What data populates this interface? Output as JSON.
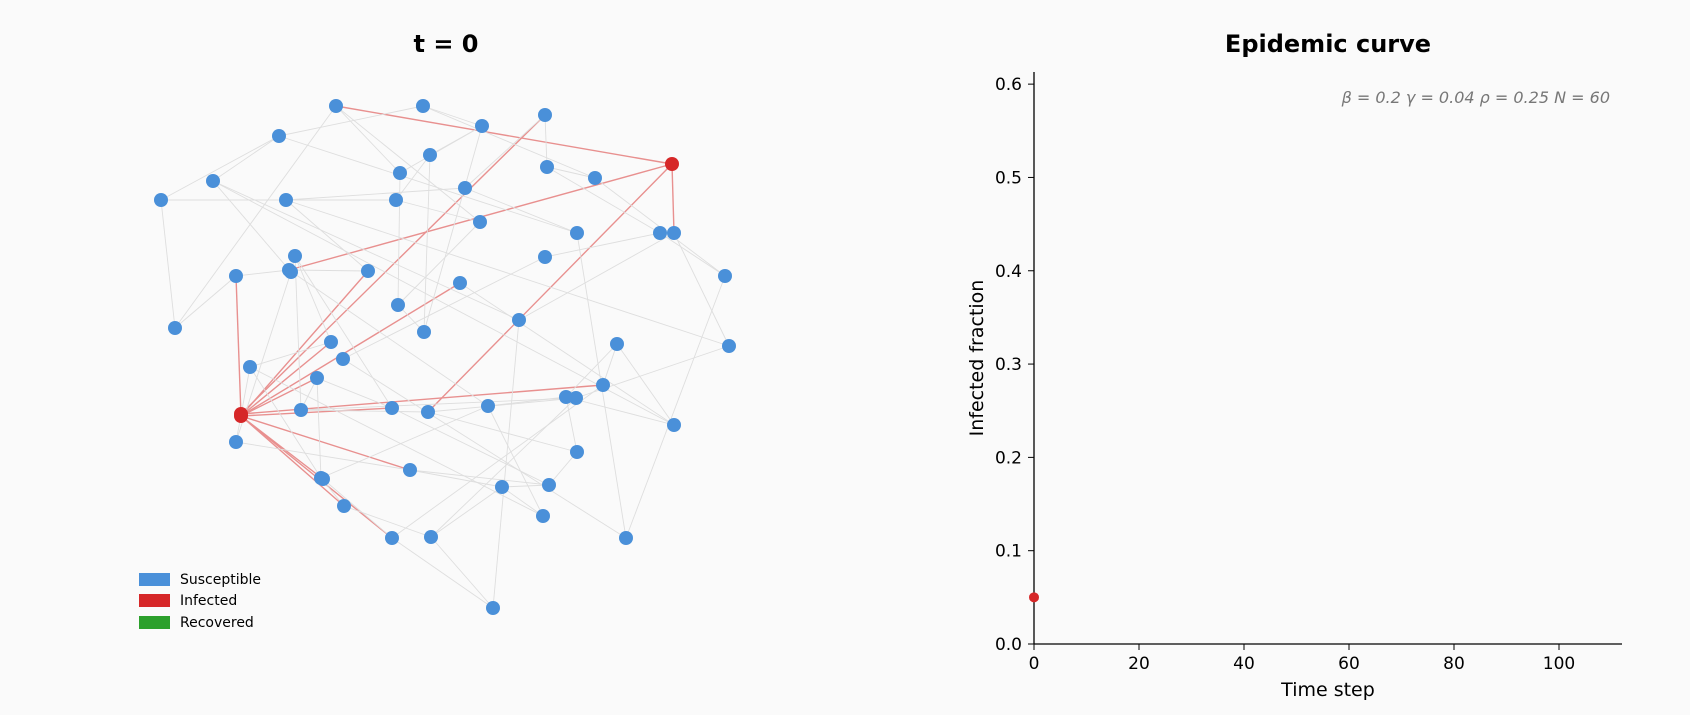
{
  "network": {
    "title": "t = 0",
    "legend": [
      {
        "label": "Susceptible",
        "color": "#4a90d9"
      },
      {
        "label": "Infected",
        "color": "#d62728"
      },
      {
        "label": "Recovered",
        "color": "#2ca02c"
      }
    ],
    "nodes": [
      {
        "id": 0,
        "state": "S"
      },
      {
        "id": 1,
        "state": "S"
      },
      {
        "id": 2,
        "state": "S"
      },
      {
        "id": 3,
        "state": "S"
      },
      {
        "id": 4,
        "state": "S"
      },
      {
        "id": 5,
        "state": "S"
      },
      {
        "id": 6,
        "state": "S"
      },
      {
        "id": 7,
        "state": "I"
      },
      {
        "id": 8,
        "state": "S"
      },
      {
        "id": 9,
        "state": "S"
      },
      {
        "id": 10,
        "state": "S"
      },
      {
        "id": 11,
        "state": "S"
      },
      {
        "id": 12,
        "state": "S"
      },
      {
        "id": 13,
        "state": "S"
      },
      {
        "id": 14,
        "state": "S"
      },
      {
        "id": 15,
        "state": "S"
      },
      {
        "id": 16,
        "state": "S"
      },
      {
        "id": 17,
        "state": "S"
      },
      {
        "id": 18,
        "state": "S"
      },
      {
        "id": 19,
        "state": "S"
      },
      {
        "id": 20,
        "state": "S"
      },
      {
        "id": 21,
        "state": "S"
      },
      {
        "id": 22,
        "state": "S"
      },
      {
        "id": 23,
        "state": "S"
      },
      {
        "id": 24,
        "state": "S"
      },
      {
        "id": 25,
        "state": "S"
      },
      {
        "id": 26,
        "state": "S"
      },
      {
        "id": 27,
        "state": "I"
      },
      {
        "id": 28,
        "state": "S"
      },
      {
        "id": 29,
        "state": "S"
      },
      {
        "id": 30,
        "state": "S"
      },
      {
        "id": 31,
        "state": "S"
      },
      {
        "id": 32,
        "state": "S"
      },
      {
        "id": 33,
        "state": "S"
      },
      {
        "id": 34,
        "state": "S"
      },
      {
        "id": 35,
        "state": "S"
      },
      {
        "id": 36,
        "state": "S"
      },
      {
        "id": 37,
        "state": "S"
      },
      {
        "id": 38,
        "state": "S"
      },
      {
        "id": 39,
        "state": "I"
      },
      {
        "id": 40,
        "state": "S"
      },
      {
        "id": 41,
        "state": "S"
      },
      {
        "id": 42,
        "state": "S"
      },
      {
        "id": 43,
        "state": "S"
      },
      {
        "id": 44,
        "state": "S"
      },
      {
        "id": 45,
        "state": "S"
      },
      {
        "id": 46,
        "state": "S"
      },
      {
        "id": 47,
        "state": "S"
      },
      {
        "id": 48,
        "state": "S"
      },
      {
        "id": 49,
        "state": "S"
      },
      {
        "id": 50,
        "state": "S"
      },
      {
        "id": 51,
        "state": "S"
      },
      {
        "id": 52,
        "state": "S"
      },
      {
        "id": 53,
        "state": "S"
      },
      {
        "id": 54,
        "state": "S"
      },
      {
        "id": 55,
        "state": "S"
      },
      {
        "id": 56,
        "state": "S"
      },
      {
        "id": 57,
        "state": "S"
      },
      {
        "id": 58,
        "state": "S"
      },
      {
        "id": 59,
        "state": "S"
      }
    ],
    "edges": [
      [
        7,
        0
      ],
      [
        7,
        4
      ],
      [
        7,
        14
      ],
      [
        7,
        11
      ],
      [
        7,
        9
      ],
      [
        7,
        13
      ],
      [
        7,
        10
      ],
      [
        7,
        32
      ],
      [
        7,
        34
      ],
      [
        7,
        25
      ],
      [
        27,
        12
      ],
      [
        27,
        33
      ],
      [
        27,
        41
      ],
      [
        39,
        22
      ],
      [
        39,
        45
      ],
      [
        0,
        1
      ],
      [
        0,
        3
      ],
      [
        1,
        5
      ],
      [
        2,
        1
      ],
      [
        2,
        6
      ],
      [
        3,
        6
      ],
      [
        3,
        8
      ],
      [
        5,
        9
      ],
      [
        5,
        12
      ],
      [
        6,
        11
      ],
      [
        8,
        9
      ],
      [
        8,
        10
      ],
      [
        9,
        13
      ],
      [
        10,
        15
      ],
      [
        11,
        16
      ],
      [
        12,
        21
      ],
      [
        12,
        19
      ],
      [
        13,
        18
      ],
      [
        14,
        22
      ],
      [
        15,
        16
      ],
      [
        15,
        20
      ],
      [
        16,
        17
      ],
      [
        16,
        18
      ],
      [
        17,
        24
      ],
      [
        18,
        19
      ],
      [
        19,
        26
      ],
      [
        20,
        23
      ],
      [
        21,
        30
      ],
      [
        22,
        28
      ],
      [
        23,
        29
      ],
      [
        24,
        26
      ],
      [
        25,
        31
      ],
      [
        26,
        28
      ],
      [
        27,
        29
      ],
      [
        28,
        31
      ],
      [
        29,
        30
      ],
      [
        30,
        35
      ],
      [
        31,
        36
      ],
      [
        32,
        33
      ],
      [
        32,
        37
      ],
      [
        33,
        34
      ],
      [
        34,
        35
      ],
      [
        35,
        38
      ],
      [
        36,
        40
      ],
      [
        37,
        38
      ],
      [
        37,
        41
      ],
      [
        38,
        40
      ],
      [
        40,
        43
      ],
      [
        41,
        42
      ],
      [
        42,
        44
      ],
      [
        43,
        44
      ],
      [
        44,
        46
      ],
      [
        45,
        47
      ],
      [
        45,
        49
      ],
      [
        46,
        48
      ],
      [
        47,
        52
      ],
      [
        48,
        51
      ],
      [
        49,
        50
      ],
      [
        49,
        53
      ],
      [
        50,
        54
      ],
      [
        51,
        57
      ],
      [
        52,
        55
      ],
      [
        53,
        54
      ],
      [
        54,
        55
      ],
      [
        55,
        58
      ],
      [
        56,
        46
      ],
      [
        57,
        56
      ],
      [
        58,
        59
      ],
      [
        59,
        53
      ],
      [
        24,
        33
      ],
      [
        36,
        23
      ],
      [
        20,
        14
      ],
      [
        17,
        3
      ],
      [
        50,
        43
      ],
      [
        1,
        13
      ],
      [
        8,
        24
      ],
      [
        35,
        47
      ],
      [
        42,
        57
      ],
      [
        4,
        14
      ],
      [
        5,
        21
      ],
      [
        26,
        31
      ],
      [
        38,
        48
      ],
      [
        44,
        56
      ],
      [
        18,
        11
      ],
      [
        2,
        36
      ],
      [
        21,
        15
      ],
      [
        41,
        51
      ],
      [
        52,
        40
      ]
    ]
  },
  "curve": {
    "title": "Epidemic curve",
    "params": "β = 0.2   γ = 0.04   ρ = 0.25      N = 60",
    "xlabel": "Time step",
    "ylabel": "Infected fraction",
    "xlim": [
      0,
      112
    ],
    "ylim": [
      0,
      0.613
    ],
    "xticks": [
      0,
      20,
      40,
      60,
      80,
      100
    ],
    "yticks": [
      0.0,
      0.1,
      0.2,
      0.3,
      0.4,
      0.5,
      0.6
    ],
    "series_color": "#d62728"
  },
  "chart_data": {
    "type": "line",
    "title": "Epidemic curve",
    "xlabel": "Time step",
    "ylabel": "Infected fraction",
    "xlim": [
      0,
      112
    ],
    "ylim": [
      0,
      0.613
    ],
    "series": [
      {
        "x": [
          0
        ],
        "y": [
          0.05
        ]
      }
    ],
    "grid": false
  }
}
